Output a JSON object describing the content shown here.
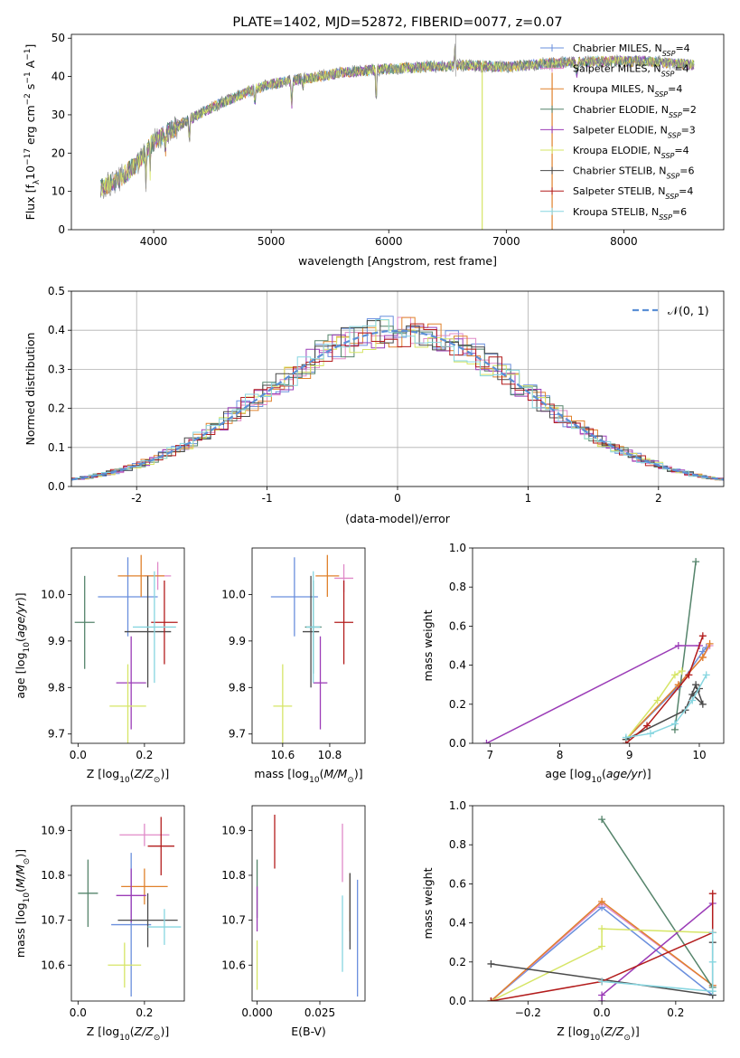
{
  "colors": [
    "#6a8fdd",
    "#e08ac8",
    "#e0812b",
    "#55846b",
    "#9b3cb7",
    "#d6e566",
    "#4a4a4a",
    "#b31c1c",
    "#87d6e0"
  ],
  "chart_data": [
    {
      "id": "spectrum",
      "type": "line",
      "title": "PLATE=1402, MJD=52872, FIBERID=0077, z=0.07",
      "xlabel": "wavelength [Angstrom, rest frame]",
      "ylabel": "Flux [f_λ 10^-17 erg cm^-2 s^-1 A^-1]",
      "xlim": [
        3300,
        8850
      ],
      "ylim": [
        0,
        51
      ],
      "xticks": [
        4000,
        5000,
        6000,
        7000,
        8000
      ],
      "yticks": [
        0,
        10,
        20,
        30,
        40,
        50
      ],
      "grid": false,
      "legend_position": "top-right",
      "legend": [
        "Chabrier MILES, N_SSP=4",
        "Salpeter MILES, N_SSP=4",
        "Kroupa MILES, N_SSP=4",
        "Chabrier ELODIE, N_SSP=2",
        "Salpeter ELODIE, N_SSP=3",
        "Kroupa ELODIE, N_SSP=4",
        "Chabrier STELIB, N_SSP=6",
        "Salpeter STELIB, N_SSP=4",
        "Kroupa STELIB, N_SSP=6"
      ],
      "continuum": {
        "x": [
          3550,
          3700,
          3850,
          4000,
          4200,
          4500,
          4800,
          5000,
          5300,
          5600,
          6000,
          6300,
          6600,
          7000,
          7400,
          7800,
          8200,
          8600
        ],
        "y": [
          11,
          13,
          17,
          23,
          27,
          32,
          36,
          38,
          39.5,
          41,
          42,
          42.5,
          43,
          42.5,
          43.5,
          44,
          44,
          43
        ]
      }
    },
    {
      "id": "residuals",
      "type": "histogram",
      "xlabel": "(data-model)/error",
      "ylabel": "Normed distribution",
      "xlim": [
        -2.5,
        2.5
      ],
      "ylim": [
        0,
        0.5
      ],
      "xticks": [
        -2,
        -1,
        0,
        1,
        2
      ],
      "yticks": [
        0.0,
        0.1,
        0.2,
        0.3,
        0.4,
        0.5
      ],
      "grid": true,
      "legend": [
        "N(0,1)"
      ],
      "legend_position": "top-right",
      "bin_width": 0.1
    },
    {
      "id": "age-vs-Z",
      "type": "scatter",
      "xlabel": "Z [log10(Z/Z☉)]",
      "ylabel": "age  [log10(age/yr)]",
      "xlim": [
        -0.02,
        0.32
      ],
      "ylim": [
        9.68,
        10.1
      ],
      "xticks": [
        0.0,
        0.2
      ],
      "yticks": [
        9.7,
        9.8,
        9.9,
        10.0
      ],
      "points": [
        {
          "x": 0.15,
          "y": 9.995,
          "xerr": 0.09,
          "yerr": 0.085
        },
        {
          "x": 0.24,
          "y": 10.04,
          "xerr": 0.04,
          "yerr": 0.03
        },
        {
          "x": 0.19,
          "y": 10.04,
          "xerr": 0.07,
          "yerr": 0.045
        },
        {
          "x": 0.02,
          "y": 9.94,
          "xerr": 0.03,
          "yerr": 0.1
        },
        {
          "x": 0.16,
          "y": 9.81,
          "xerr": 0.045,
          "yerr": 0.1
        },
        {
          "x": 0.15,
          "y": 9.76,
          "xerr": 0.055,
          "yerr": 0.09
        },
        {
          "x": 0.21,
          "y": 9.92,
          "xerr": 0.07,
          "yerr": 0.12
        },
        {
          "x": 0.26,
          "y": 9.94,
          "xerr": 0.04,
          "yerr": 0.09
        },
        {
          "x": 0.23,
          "y": 9.93,
          "xerr": 0.065,
          "yerr": 0.12
        }
      ]
    },
    {
      "id": "age-vs-mass",
      "type": "scatter",
      "xlabel": "mass [log10(M/M☉)]",
      "ylabel": "",
      "xlim": [
        10.47,
        10.95
      ],
      "ylim": [
        9.68,
        10.1
      ],
      "xticks": [
        10.6,
        10.8
      ],
      "yticks": [
        9.7,
        9.8,
        9.9,
        10.0
      ],
      "points": [
        {
          "x": 10.65,
          "y": 9.995,
          "xerr": 0.1,
          "yerr": 0.085
        },
        {
          "x": 10.86,
          "y": 10.035,
          "xerr": 0.04,
          "yerr": 0.03
        },
        {
          "x": 10.79,
          "y": 10.04,
          "xerr": 0.05,
          "yerr": 0.045
        },
        {
          "x": 10.73,
          "y": 9.93,
          "xerr": 0.035,
          "yerr": 0.1
        },
        {
          "x": 10.76,
          "y": 9.81,
          "xerr": 0.03,
          "yerr": 0.1
        },
        {
          "x": 10.6,
          "y": 9.76,
          "xerr": 0.04,
          "yerr": 0.09
        },
        {
          "x": 10.72,
          "y": 9.92,
          "xerr": 0.035,
          "yerr": 0.12
        },
        {
          "x": 10.86,
          "y": 9.94,
          "xerr": 0.04,
          "yerr": 0.09
        },
        {
          "x": 10.73,
          "y": 9.93,
          "xerr": 0.03,
          "yerr": 0.12
        }
      ]
    },
    {
      "id": "weight-vs-age",
      "type": "line",
      "xlabel": "age  [log10(age/yr)]",
      "ylabel": "mass weight",
      "xlim": [
        6.75,
        10.35
      ],
      "ylim": [
        0,
        1
      ],
      "xticks": [
        7,
        8,
        9,
        10
      ],
      "yticks": [
        0.0,
        0.2,
        0.4,
        0.6,
        0.8,
        1.0
      ],
      "grid": true,
      "series": [
        {
          "x": [
            8.95,
            9.7,
            10.05,
            10.1
          ],
          "y": [
            0.02,
            0.29,
            0.47,
            0.49
          ]
        },
        {
          "x": [
            8.95,
            9.7,
            10.05,
            10.15
          ],
          "y": [
            0.02,
            0.3,
            0.44,
            0.5
          ]
        },
        {
          "x": [
            8.95,
            9.7,
            10.05,
            10.15
          ],
          "y": [
            0.02,
            0.3,
            0.44,
            0.51
          ]
        },
        {
          "x": [
            9.65,
            9.95
          ],
          "y": [
            0.07,
            0.93
          ]
        },
        {
          "x": [
            6.95,
            9.7,
            10.0
          ],
          "y": [
            0.0,
            0.5,
            0.5
          ]
        },
        {
          "x": [
            8.95,
            9.4,
            9.65,
            9.75
          ],
          "y": [
            0.02,
            0.22,
            0.35,
            0.37
          ]
        },
        {
          "x": [
            8.95,
            9.8,
            9.95,
            10.05,
            9.9,
            10.0
          ],
          "y": [
            0.02,
            0.17,
            0.3,
            0.2,
            0.25,
            0.28
          ]
        },
        {
          "x": [
            8.95,
            9.25,
            9.85,
            10.05
          ],
          "y": [
            0.0,
            0.09,
            0.35,
            0.55
          ]
        },
        {
          "x": [
            8.95,
            9.3,
            9.65,
            9.9,
            10.1
          ],
          "y": [
            0.03,
            0.05,
            0.1,
            0.22,
            0.35
          ]
        }
      ]
    },
    {
      "id": "mass-vs-Z",
      "type": "scatter",
      "xlabel": "Z [log10(Z/Z☉)]",
      "ylabel": "mass [log10(M/M☉)]",
      "xlim": [
        -0.02,
        0.32
      ],
      "ylim": [
        10.52,
        10.955
      ],
      "xticks": [
        0.0,
        0.2
      ],
      "yticks": [
        10.6,
        10.7,
        10.8,
        10.9
      ],
      "points": [
        {
          "x": 0.16,
          "y": 10.69,
          "xerr": 0.06,
          "yerr": 0.16
        },
        {
          "x": 0.2,
          "y": 10.89,
          "xerr": 0.075,
          "yerr": 0.025
        },
        {
          "x": 0.2,
          "y": 10.775,
          "xerr": 0.07,
          "yerr": 0.04
        },
        {
          "x": 0.03,
          "y": 10.76,
          "xerr": 0.03,
          "yerr": 0.075
        },
        {
          "x": 0.16,
          "y": 10.755,
          "xerr": 0.045,
          "yerr": 0.06
        },
        {
          "x": 0.14,
          "y": 10.6,
          "xerr": 0.05,
          "yerr": 0.05
        },
        {
          "x": 0.21,
          "y": 10.7,
          "xerr": 0.09,
          "yerr": 0.06
        },
        {
          "x": 0.25,
          "y": 10.865,
          "xerr": 0.04,
          "yerr": 0.065
        },
        {
          "x": 0.26,
          "y": 10.685,
          "xerr": 0.05,
          "yerr": 0.04
        }
      ]
    },
    {
      "id": "mass-vs-EBV",
      "type": "scatter",
      "xlabel": "E(B-V)",
      "ylabel": "",
      "xlim": [
        -0.002,
        0.043
      ],
      "ylim": [
        10.52,
        10.955
      ],
      "xticks": [
        0.0,
        0.025
      ],
      "yticks": [
        10.6,
        10.7,
        10.8,
        10.9
      ],
      "points": [
        {
          "x": 0.04,
          "y": 10.66,
          "xerr": 0,
          "yerr": 0.13
        },
        {
          "x": 0.034,
          "y": 10.85,
          "xerr": 0,
          "yerr": 0.065
        },
        {
          "x": 0.037,
          "y": 10.74,
          "xerr": 0,
          "yerr": 0.065
        },
        {
          "x": 0.0,
          "y": 10.77,
          "xerr": 0,
          "yerr": 0.065
        },
        {
          "x": 0.0,
          "y": 10.725,
          "xerr": 0,
          "yerr": 0.05
        },
        {
          "x": 0.0,
          "y": 10.6,
          "xerr": 0,
          "yerr": 0.055
        },
        {
          "x": 0.037,
          "y": 10.72,
          "xerr": 0,
          "yerr": 0.085
        },
        {
          "x": 0.007,
          "y": 10.875,
          "xerr": 0,
          "yerr": 0.06
        },
        {
          "x": 0.034,
          "y": 10.67,
          "xerr": 0,
          "yerr": 0.085
        }
      ]
    },
    {
      "id": "weight-vs-Z",
      "type": "line",
      "xlabel": "Z [log10(Z/Z☉)]",
      "ylabel": "mass weight",
      "xlim": [
        -0.35,
        0.33
      ],
      "ylim": [
        0,
        1
      ],
      "xticks": [
        -0.2,
        0.0,
        0.2
      ],
      "yticks": [
        0.0,
        0.2,
        0.4,
        0.6,
        0.8,
        1.0
      ],
      "grid": true,
      "series": [
        {
          "x": [
            -0.3,
            0.0,
            0.3
          ],
          "y": [
            0.0,
            0.48,
            0.03
          ]
        },
        {
          "x": [
            -0.3,
            0.0,
            0.3
          ],
          "y": [
            0.0,
            0.5,
            0.08
          ]
        },
        {
          "x": [
            -0.3,
            0.0,
            0.3
          ],
          "y": [
            0.0,
            0.51,
            0.08
          ]
        },
        {
          "x": [
            0.0,
            0.3
          ],
          "y": [
            0.93,
            0.07
          ]
        },
        {
          "x": [
            0.0,
            0.0,
            0.3
          ],
          "y": [
            0.0,
            0.03,
            0.5
          ]
        },
        {
          "x": [
            -0.3,
            0.0,
            0.0,
            0.3
          ],
          "y": [
            0.0,
            0.28,
            0.37,
            0.35
          ]
        },
        {
          "x": [
            -0.3,
            0.3,
            0.3
          ],
          "y": [
            0.19,
            0.03,
            0.3
          ]
        },
        {
          "x": [
            -0.3,
            0.0,
            0.3,
            0.3
          ],
          "y": [
            0.0,
            0.1,
            0.35,
            0.55
          ]
        },
        {
          "x": [
            0.0,
            0.3,
            0.3,
            0.3
          ],
          "y": [
            0.1,
            0.05,
            0.2,
            0.35
          ]
        }
      ]
    }
  ]
}
